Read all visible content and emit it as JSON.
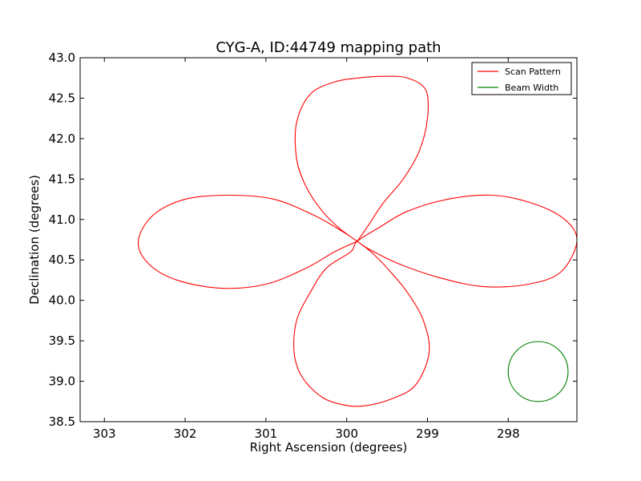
{
  "chart_data": {
    "type": "line",
    "title": "CYG-A, ID:44749 mapping path",
    "xlabel": "Right Ascension (degrees)",
    "ylabel": "Declination (degrees)",
    "xlim": [
      303.3,
      297.15
    ],
    "ylim": [
      38.5,
      43.0
    ],
    "x_inverted": true,
    "xticks": [
      303,
      302,
      301,
      300,
      299,
      298
    ],
    "xtick_labels": [
      "303",
      "302",
      "301",
      "300",
      "299",
      "298"
    ],
    "yticks": [
      38.5,
      39.0,
      39.5,
      40.0,
      40.5,
      41.0,
      41.5,
      42.0,
      42.5,
      43.0
    ],
    "ytick_labels": [
      "38.5",
      "39.0",
      "39.5",
      "40.0",
      "40.5",
      "41.0",
      "41.5",
      "42.0",
      "42.5",
      "43.0"
    ],
    "grid": false,
    "legend_position": "top-right",
    "center": {
      "ra": 299.87,
      "dec": 40.73
    },
    "series": [
      {
        "name": "Scan Pattern",
        "color": "#ff0000",
        "kind": "four-petal rosette",
        "petal_length": 2.7,
        "petal_halfwidth": 0.58,
        "petal_directions": [
          "north",
          "east",
          "south",
          "west"
        ],
        "points_ra": [
          299.87,
          299.75,
          299.55,
          299.3,
          299.1,
          299.0,
          299.02,
          299.25,
          299.55,
          299.85,
          300.15,
          300.45,
          300.62,
          300.62,
          300.5,
          300.3,
          300.1,
          299.87,
          299.7,
          299.35,
          298.85,
          298.3,
          297.75,
          297.35,
          297.15,
          297.3,
          297.7,
          298.2,
          298.75,
          299.25,
          299.6,
          299.87,
          299.95,
          300.25,
          300.45,
          300.62,
          300.65,
          300.55,
          300.3,
          300.0,
          299.75,
          299.45,
          299.15,
          298.98,
          299.05,
          299.25,
          299.5,
          299.7,
          299.87,
          300.05,
          300.4,
          300.9,
          301.45,
          302.0,
          302.4,
          302.58,
          302.45,
          302.1,
          301.55,
          301.0,
          300.5,
          300.15,
          299.87
        ],
        "points_dec": [
          40.73,
          40.9,
          41.2,
          41.5,
          41.85,
          42.25,
          42.6,
          42.75,
          42.77,
          42.75,
          42.7,
          42.55,
          42.2,
          41.75,
          41.4,
          41.1,
          40.9,
          40.73,
          40.62,
          40.45,
          40.28,
          40.17,
          40.2,
          40.35,
          40.73,
          41.0,
          41.2,
          41.3,
          41.25,
          41.1,
          40.9,
          40.73,
          40.6,
          40.4,
          40.1,
          39.75,
          39.35,
          39.05,
          38.8,
          38.7,
          38.7,
          38.78,
          38.95,
          39.35,
          39.75,
          40.1,
          40.4,
          40.6,
          40.73,
          40.85,
          41.05,
          41.25,
          41.3,
          41.25,
          41.05,
          40.73,
          40.45,
          40.25,
          40.15,
          40.2,
          40.4,
          40.6,
          40.73
        ]
      },
      {
        "name": "Beam Width",
        "color": "#008000",
        "kind": "circle",
        "center_ra": 297.63,
        "center_dec": 39.12,
        "radius_deg": 0.37
      }
    ]
  }
}
